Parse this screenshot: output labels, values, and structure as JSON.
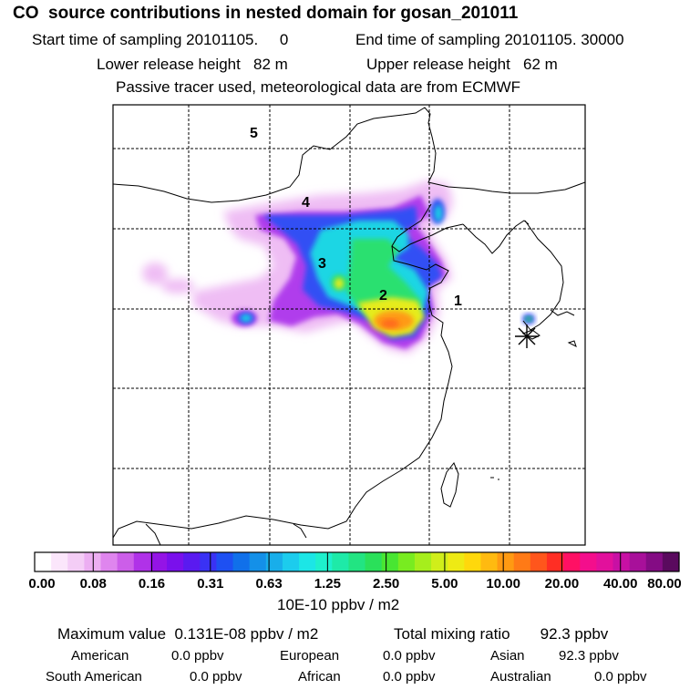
{
  "header": {
    "title": "CO  source contributions in nested domain for gosan_201011",
    "start_time": "Start time of sampling 20101105.     0",
    "end_time": "End time of sampling 20101105. 30000",
    "lower_height": "Lower release height   82 m",
    "upper_height": "Upper release height   62 m",
    "tracer_note": "Passive tracer used, meteorological data are from ECMWF"
  },
  "map": {
    "region_labels": [
      "5",
      "4",
      "3",
      "2",
      "1"
    ],
    "station_marker": "asterisk-icon"
  },
  "colorbar": {
    "tick_labels": [
      "0.00",
      "0.08",
      "0.16",
      "0.31",
      "0.63",
      "1.25",
      "2.50",
      "5.00",
      "10.00",
      "20.00",
      "40.00",
      "80.00"
    ],
    "colors": [
      "#ffffff",
      "#fbe6fb",
      "#f4cdf6",
      "#ecaef2",
      "#df85ee",
      "#cc5ee9",
      "#b032e8",
      "#9414e6",
      "#7a10ec",
      "#5a1af0",
      "#3a32f4",
      "#1e50f2",
      "#1070ea",
      "#1490e8",
      "#18aeea",
      "#1ccced",
      "#1ce6e6",
      "#1ef0cc",
      "#1eeaa8",
      "#22e482",
      "#2ae05a",
      "#48e632",
      "#78ec20",
      "#a6ee1c",
      "#d0ee1a",
      "#eeea14",
      "#ffd80c",
      "#ffba10",
      "#ff9a12",
      "#ff7a16",
      "#ff561c",
      "#ff2e24",
      "#ff1064",
      "#f40e8c",
      "#e2109c",
      "#c810a4",
      "#a8109a",
      "#840c84",
      "#5a0a5e"
    ],
    "unit": "10E-10 ppbv / m2"
  },
  "stats": {
    "max_value": "Maximum value  0.131E-08 ppbv / m2",
    "total": "Total mixing ratio       92.3 ppbv",
    "sources": [
      {
        "label": "American",
        "value": "0.0 ppbv"
      },
      {
        "label": "European",
        "value": "0.0 ppbv"
      },
      {
        "label": "Asian",
        "value": "92.3 ppbv"
      },
      {
        "label": "South American",
        "value": "0.0 ppbv"
      },
      {
        "label": "African",
        "value": "0.0 ppbv"
      },
      {
        "label": "Australian",
        "value": "0.0 ppbv"
      }
    ]
  }
}
